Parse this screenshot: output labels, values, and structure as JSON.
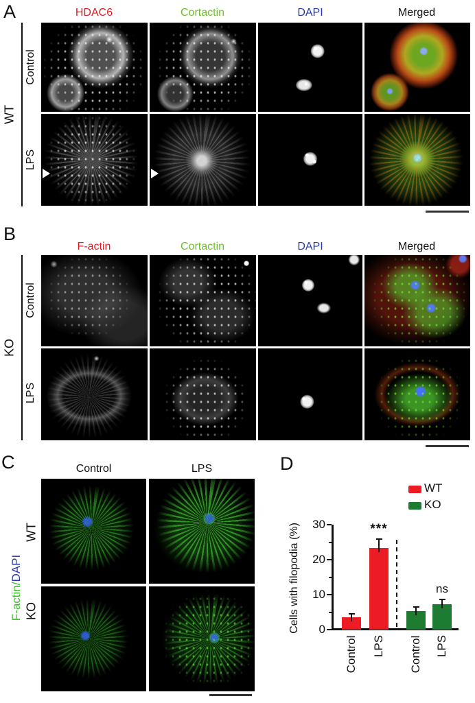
{
  "figure": {
    "panel_a": {
      "label": "A",
      "group_label": "WT",
      "column_headers": [
        "HDAC6",
        "Cortactin",
        "DAPI",
        "Merged"
      ],
      "column_header_colors": [
        "#df1d23",
        "#6fbf2d",
        "#2b3cb0",
        "#111111"
      ],
      "row_labels": [
        "Control",
        "LPS"
      ]
    },
    "panel_b": {
      "label": "B",
      "group_label": "KO",
      "column_headers": [
        "F-actin",
        "Cortactin",
        "DAPI",
        "Merged"
      ],
      "column_header_colors": [
        "#df1d23",
        "#6fbf2d",
        "#2b3cb0",
        "#111111"
      ],
      "row_labels": [
        "Control",
        "LPS"
      ]
    },
    "panel_c": {
      "label": "C",
      "column_headers": [
        "Control",
        "LPS"
      ],
      "row_labels": [
        "WT",
        "KO"
      ],
      "axis_label": {
        "factin": "F-actin",
        "slash": "/",
        "dapi": "DAPI"
      },
      "axis_label_colors": {
        "factin": "#3dbb2a",
        "dapi": "#2b3cb0"
      }
    },
    "panel_d": {
      "label": "D"
    }
  },
  "chart_data": {
    "type": "bar",
    "ylabel": "Cells with filopodia (%)",
    "ylim": [
      0,
      30
    ],
    "yticks": [
      0,
      10,
      20,
      30
    ],
    "minor_yticks": [
      5,
      15,
      25
    ],
    "categories": [
      "Control",
      "LPS",
      "Control",
      "LPS"
    ],
    "bar_groups": [
      "WT",
      "WT",
      "KO",
      "KO"
    ],
    "values": [
      3.5,
      23.4,
      5.3,
      7.3
    ],
    "errors": [
      1.2,
      2.6,
      1.4,
      1.5
    ],
    "bar_colors": [
      "#ec1c24",
      "#ec1c24",
      "#1e7b32",
      "#1e7b32"
    ],
    "annotations": [
      {
        "bar_index": 1,
        "text": "***"
      },
      {
        "bar_index": 3,
        "text": "ns"
      }
    ],
    "legend": [
      {
        "label": "WT",
        "color": "#ec1c24"
      },
      {
        "label": "KO",
        "color": "#1e7b32"
      }
    ],
    "legend_position": "top-right",
    "group_separator": "vertical dashed line between WT and KO groups"
  }
}
